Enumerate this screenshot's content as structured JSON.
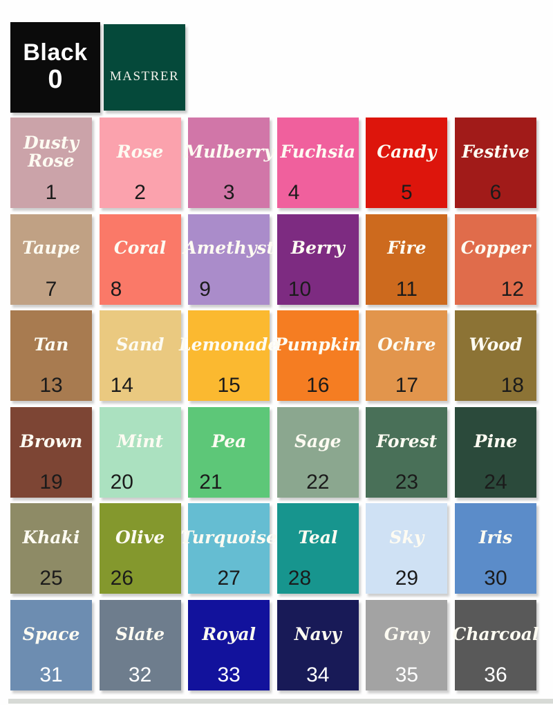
{
  "header": {
    "brand": {
      "label": "MASTRER",
      "bg": "#05493a",
      "text_color": "#f2f1ea"
    }
  },
  "grid": {
    "name_color": "#fdfbf2",
    "number_color_dark": "#1b1b1b",
    "number_color_light": "#ffffff"
  },
  "chart_data": {
    "type": "table",
    "columns": [
      "number",
      "name",
      "color_hex"
    ],
    "rows": [
      {
        "number": "0",
        "name": "Black",
        "hex": "#0b0b0b",
        "num_color": "#ffffff",
        "num_align": "center"
      },
      {
        "number": "1",
        "name": "Dusty Rose",
        "hex": "#cba3a9",
        "num_color": "#1b1b1b",
        "num_align": "center"
      },
      {
        "number": "2",
        "name": "Rose",
        "hex": "#fba2ad",
        "num_color": "#1b1b1b",
        "num_align": "center"
      },
      {
        "number": "3",
        "name": "Mulberry",
        "hex": "#d176a8",
        "num_color": "#1b1b1b",
        "num_align": "center"
      },
      {
        "number": "4",
        "name": "Fuchsia",
        "hex": "#f0609d",
        "num_color": "#1b1b1b",
        "num_align": "left"
      },
      {
        "number": "5",
        "name": "Candy",
        "hex": "#dd150c",
        "num_color": "#1b1b1b",
        "num_align": "center"
      },
      {
        "number": "6",
        "name": "Festive",
        "hex": "#a11b19",
        "num_color": "#1b1b1b",
        "num_align": "center"
      },
      {
        "number": "7",
        "name": "Taupe",
        "hex": "#c0a184",
        "num_color": "#1b1b1b",
        "num_align": "center"
      },
      {
        "number": "8",
        "name": "Coral",
        "hex": "#fa7968",
        "num_color": "#1b1b1b",
        "num_align": "left"
      },
      {
        "number": "9",
        "name": "Amethyst",
        "hex": "#aa8cca",
        "num_color": "#1b1b1b",
        "num_align": "left"
      },
      {
        "number": "10",
        "name": "Berry",
        "hex": "#7d2b81",
        "num_color": "#1b1b1b",
        "num_align": "left"
      },
      {
        "number": "11",
        "name": "Fire",
        "hex": "#cd6a1e",
        "num_color": "#1b1b1b",
        "num_align": "center"
      },
      {
        "number": "12",
        "name": "Copper",
        "hex": "#e06c4b",
        "num_color": "#1b1b1b",
        "num_align": "right"
      },
      {
        "number": "13",
        "name": "Tan",
        "hex": "#a87b50",
        "num_color": "#1b1b1b",
        "num_align": "center"
      },
      {
        "number": "14",
        "name": "Sand",
        "hex": "#eac980",
        "num_color": "#1b1b1b",
        "num_align": "left"
      },
      {
        "number": "15",
        "name": "Lemonade",
        "hex": "#fbb930",
        "num_color": "#1b1b1b",
        "num_align": "center"
      },
      {
        "number": "16",
        "name": "Pumpkin",
        "hex": "#f57d22",
        "num_color": "#1b1b1b",
        "num_align": "center"
      },
      {
        "number": "17",
        "name": "Ochre",
        "hex": "#e2954c",
        "num_color": "#1b1b1b",
        "num_align": "center"
      },
      {
        "number": "18",
        "name": "Wood",
        "hex": "#8c7335",
        "num_color": "#1b1b1b",
        "num_align": "right"
      },
      {
        "number": "19",
        "name": "Brown",
        "hex": "#7d4534",
        "num_color": "#1b1b1b",
        "num_align": "center"
      },
      {
        "number": "20",
        "name": "Mint",
        "hex": "#abe1c0",
        "num_color": "#1b1b1b",
        "num_align": "left"
      },
      {
        "number": "21",
        "name": "Pea",
        "hex": "#5dc778",
        "num_color": "#1b1b1b",
        "num_align": "left"
      },
      {
        "number": "22",
        "name": "Sage",
        "hex": "#8ba78f",
        "num_color": "#1b1b1b",
        "num_align": "center"
      },
      {
        "number": "23",
        "name": "Forest",
        "hex": "#497058",
        "num_color": "#1b1b1b",
        "num_align": "center"
      },
      {
        "number": "24",
        "name": "Pine",
        "hex": "#2b4a3b",
        "num_color": "#1b1b1b",
        "num_align": "center"
      },
      {
        "number": "25",
        "name": "Khaki",
        "hex": "#8e8b66",
        "num_color": "#1b1b1b",
        "num_align": "center"
      },
      {
        "number": "26",
        "name": "Olive",
        "hex": "#84982d",
        "num_color": "#1b1b1b",
        "num_align": "left"
      },
      {
        "number": "27",
        "name": "Turquoise",
        "hex": "#65bdd2",
        "num_color": "#1b1b1b",
        "num_align": "center"
      },
      {
        "number": "28",
        "name": "Teal",
        "hex": "#17958e",
        "num_color": "#1b1b1b",
        "num_align": "left"
      },
      {
        "number": "29",
        "name": "Sky",
        "hex": "#cfe1f4",
        "num_color": "#1b1b1b",
        "num_align": "center"
      },
      {
        "number": "30",
        "name": "Iris",
        "hex": "#5b8cc9",
        "num_color": "#1b1b1b",
        "num_align": "center"
      },
      {
        "number": "31",
        "name": "Space",
        "hex": "#6d8db1",
        "num_color": "#ffffff",
        "num_align": "center"
      },
      {
        "number": "32",
        "name": "Slate",
        "hex": "#6e7d8d",
        "num_color": "#ffffff",
        "num_align": "center"
      },
      {
        "number": "33",
        "name": "Royal",
        "hex": "#12129c",
        "num_color": "#ffffff",
        "num_align": "center"
      },
      {
        "number": "34",
        "name": "Navy",
        "hex": "#181a57",
        "num_color": "#ffffff",
        "num_align": "center"
      },
      {
        "number": "35",
        "name": "Gray",
        "hex": "#a3a3a3",
        "num_color": "#ffffff",
        "num_align": "center"
      },
      {
        "number": "36",
        "name": "Charcoal",
        "hex": "#595959",
        "num_color": "#ffffff",
        "num_align": "center"
      }
    ]
  }
}
